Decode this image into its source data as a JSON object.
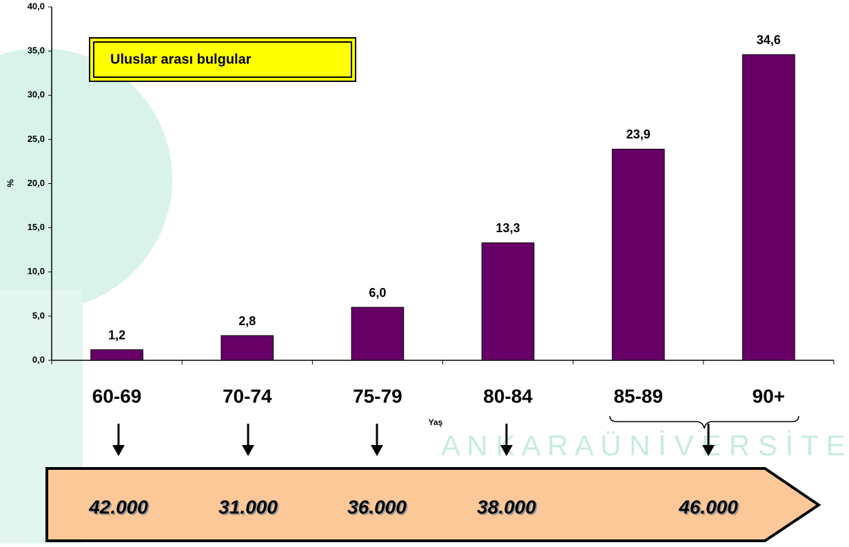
{
  "chart_data": {
    "type": "bar",
    "annotation": "Uluslar arası bulgular",
    "ylabel": "%",
    "xlabel": "Yaş",
    "categories": [
      "60-69",
      "70-74",
      "75-79",
      "80-84",
      "85-89",
      "90+"
    ],
    "values": [
      1.2,
      2.8,
      6.0,
      13.3,
      23.9,
      34.6
    ],
    "value_labels": [
      "1,2",
      "2,8",
      "6,0",
      "13,3",
      "23,9",
      "34,6"
    ],
    "color": "#660066",
    "ylim": [
      0,
      40
    ],
    "yticks": [
      {
        "value": 0,
        "label": "0,0"
      },
      {
        "value": 5,
        "label": "5,0"
      },
      {
        "value": 10,
        "label": "10,0"
      },
      {
        "value": 15,
        "label": "15,0"
      },
      {
        "value": 20,
        "label": "20,0"
      },
      {
        "value": 25,
        "label": "25,0"
      },
      {
        "value": 30,
        "label": "30,0"
      },
      {
        "value": 35,
        "label": "35,0"
      },
      {
        "value": 40,
        "label": "40,0"
      }
    ],
    "arrow_labels": [
      "42.000",
      "31.000",
      "36.000",
      "38.000",
      "46.000"
    ],
    "watermark": "A N K A R A   Ü N İ V E R S İ T E S İ"
  }
}
